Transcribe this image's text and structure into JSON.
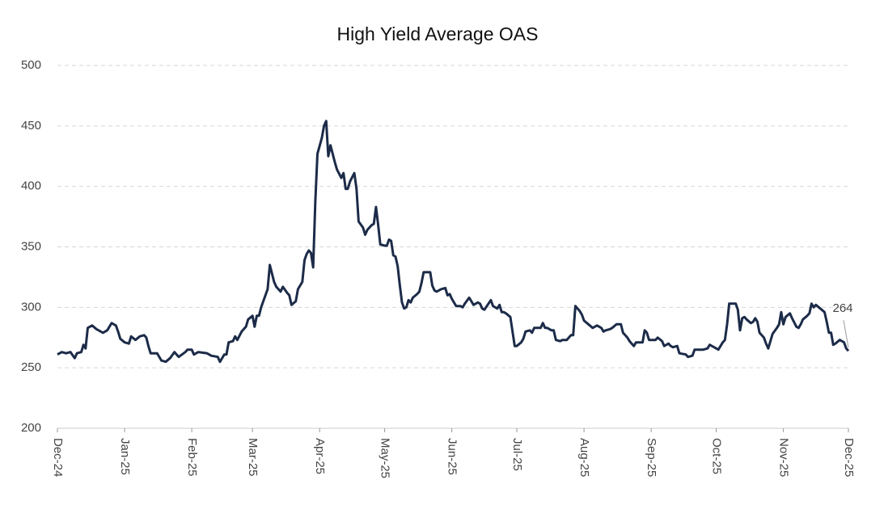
{
  "chart_data": {
    "type": "line",
    "title": "High Yield Average OAS",
    "color": "#1c2b48",
    "grid": true,
    "xlim": [
      0,
      365
    ],
    "xticks": [
      {
        "value": 0,
        "label": "Dec-24"
      },
      {
        "value": 31,
        "label": "Jan-25"
      },
      {
        "value": 62,
        "label": "Feb-25"
      },
      {
        "value": 90,
        "label": "Mar-25"
      },
      {
        "value": 121,
        "label": "Apr-25"
      },
      {
        "value": 151,
        "label": "May-25"
      },
      {
        "value": 182,
        "label": "Jun-25"
      },
      {
        "value": 212,
        "label": "Jul-25"
      },
      {
        "value": 243,
        "label": "Aug-25"
      },
      {
        "value": 274,
        "label": "Sep-25"
      },
      {
        "value": 304,
        "label": "Oct-25"
      },
      {
        "value": 335,
        "label": "Nov-25"
      },
      {
        "value": 365,
        "label": "Dec-25"
      }
    ],
    "ylim": [
      200,
      500
    ],
    "yticks": [
      200,
      250,
      300,
      350,
      400,
      450,
      500
    ],
    "x": [
      0,
      2,
      4,
      6,
      8,
      9,
      11,
      12,
      13,
      14,
      16,
      18,
      19,
      21,
      23,
      25,
      27,
      28,
      29,
      31,
      33,
      34,
      36,
      38,
      40,
      41,
      42,
      43,
      46,
      48,
      50,
      52,
      54,
      56,
      59,
      60,
      62,
      63,
      65,
      69,
      71,
      74,
      75,
      77,
      78,
      79,
      81,
      82,
      83,
      85,
      87,
      88,
      90,
      91,
      92,
      93,
      94,
      96,
      97,
      98,
      100,
      101,
      103,
      104,
      106,
      107,
      108,
      110,
      111,
      113,
      114,
      115,
      116,
      117,
      118,
      119,
      120,
      122,
      123,
      124,
      125,
      126,
      128,
      129,
      131,
      132,
      133,
      134,
      135,
      137,
      138,
      139,
      141,
      142,
      143,
      145,
      146,
      147,
      148,
      149,
      151,
      152,
      153,
      154,
      155,
      156,
      157,
      158,
      159,
      160,
      161,
      162,
      163,
      164,
      166,
      167,
      168,
      169,
      172,
      173,
      174,
      175,
      177,
      179,
      180,
      181,
      182,
      184,
      186,
      187,
      188,
      190,
      192,
      194,
      195,
      196,
      197,
      200,
      201,
      203,
      204,
      205,
      206,
      207,
      209,
      210,
      211,
      212,
      214,
      215,
      216,
      218,
      219,
      220,
      223,
      224,
      225,
      226,
      228,
      229,
      230,
      232,
      233,
      235,
      237,
      238,
      239,
      241,
      242,
      243,
      245,
      247,
      248,
      249,
      251,
      252,
      253,
      255,
      256,
      258,
      260,
      261,
      263,
      264,
      266,
      267,
      270,
      271,
      272,
      273,
      276,
      277,
      279,
      280,
      282,
      283,
      284,
      286,
      287,
      290,
      291,
      293,
      294,
      297,
      298,
      300,
      301,
      303,
      305,
      307,
      308,
      309,
      310,
      313,
      314,
      315,
      316,
      317,
      318,
      320,
      321,
      322,
      323,
      324,
      326,
      327,
      328,
      330,
      332,
      333,
      334,
      335,
      336,
      338,
      339,
      341,
      342,
      343,
      344,
      346,
      347,
      348,
      349,
      350,
      352,
      354,
      355,
      356,
      357,
      358,
      359,
      361,
      363,
      364,
      365
    ],
    "values": [
      261,
      263,
      262,
      263,
      258,
      262,
      263,
      269,
      266,
      283,
      285,
      282,
      281,
      279,
      281,
      287,
      285,
      280,
      274,
      271,
      270,
      276,
      273,
      276,
      277,
      275,
      268,
      262,
      262,
      256,
      255,
      258,
      263,
      259,
      263,
      265,
      265,
      261,
      263,
      262,
      260,
      259,
      255,
      261,
      261,
      271,
      272,
      276,
      273,
      280,
      284,
      290,
      293,
      284,
      293,
      293,
      300,
      310,
      315,
      335,
      321,
      317,
      313,
      317,
      312,
      310,
      302,
      305,
      315,
      321,
      339,
      344,
      347,
      345,
      333,
      388,
      427,
      440,
      450,
      454,
      425,
      434,
      420,
      414,
      407,
      411,
      398,
      398,
      404,
      411,
      398,
      371,
      366,
      360,
      364,
      368,
      369,
      383,
      368,
      352,
      351,
      351,
      356,
      355,
      343,
      342,
      334,
      318,
      304,
      299,
      300,
      306,
      304,
      308,
      311,
      313,
      320,
      329,
      329,
      318,
      314,
      313,
      315,
      316,
      310,
      311,
      307,
      301,
      301,
      300,
      303,
      308,
      302,
      304,
      303,
      299,
      298,
      306,
      301,
      299,
      302,
      296,
      296,
      295,
      292,
      280,
      268,
      268,
      271,
      274,
      280,
      281,
      279,
      283,
      283,
      287,
      283,
      283,
      281,
      281,
      273,
      272,
      273,
      273,
      277,
      277,
      301,
      297,
      294,
      289,
      286,
      283,
      284,
      285,
      283,
      280,
      281,
      282,
      283,
      286,
      286,
      279,
      275,
      272,
      268,
      271,
      271,
      281,
      279,
      273,
      273,
      275,
      272,
      268,
      270,
      268,
      267,
      268,
      262,
      261,
      259,
      260,
      265,
      265,
      265,
      266,
      269,
      267,
      265,
      271,
      273,
      286,
      303,
      303,
      298,
      281,
      291,
      292,
      290,
      287,
      288,
      291,
      288,
      279,
      275,
      270,
      266,
      278,
      283,
      286,
      296,
      286,
      292,
      295,
      291,
      284,
      283,
      286,
      290,
      293,
      295,
      303,
      300,
      302,
      299,
      296,
      288,
      279,
      279,
      269,
      270,
      273,
      271,
      266,
      264
    ]
  }
}
